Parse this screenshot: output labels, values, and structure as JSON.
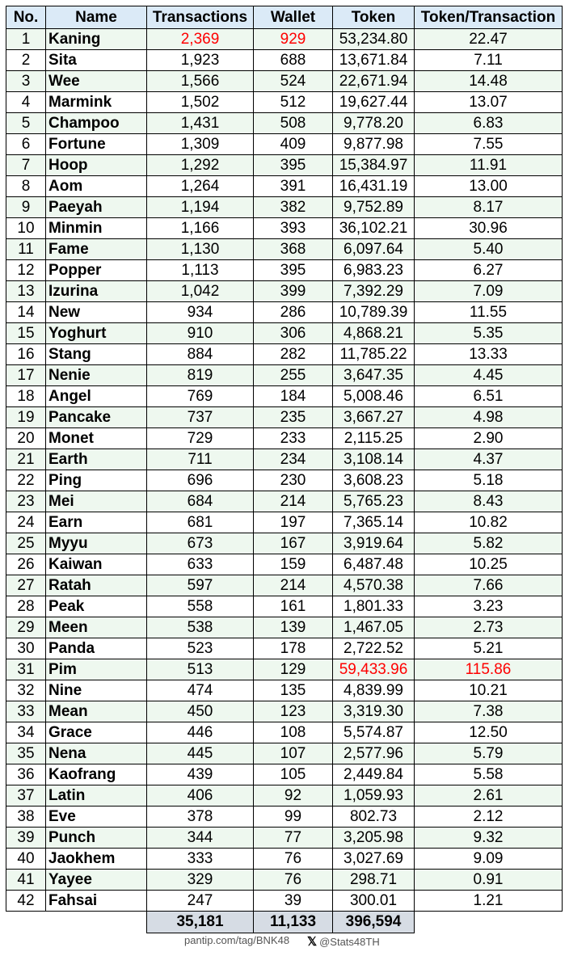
{
  "table": {
    "headers": [
      "No.",
      "Name",
      "Transactions",
      "Wallet",
      "Token",
      "Token/Transaction"
    ],
    "rows": [
      [
        "1",
        "Kaning",
        "2,369",
        "929",
        "53,234.80",
        "22.47"
      ],
      [
        "2",
        "Sita",
        "1,923",
        "688",
        "13,671.84",
        "7.11"
      ],
      [
        "3",
        "Wee",
        "1,566",
        "524",
        "22,671.94",
        "14.48"
      ],
      [
        "4",
        "Marmink",
        "1,502",
        "512",
        "19,627.44",
        "13.07"
      ],
      [
        "5",
        "Champoo",
        "1,431",
        "508",
        "9,778.20",
        "6.83"
      ],
      [
        "6",
        "Fortune",
        "1,309",
        "409",
        "9,877.98",
        "7.55"
      ],
      [
        "7",
        "Hoop",
        "1,292",
        "395",
        "15,384.97",
        "11.91"
      ],
      [
        "8",
        "Aom",
        "1,264",
        "391",
        "16,431.19",
        "13.00"
      ],
      [
        "9",
        "Paeyah",
        "1,194",
        "382",
        "9,752.89",
        "8.17"
      ],
      [
        "10",
        "Minmin",
        "1,166",
        "393",
        "36,102.21",
        "30.96"
      ],
      [
        "11",
        "Fame",
        "1,130",
        "368",
        "6,097.64",
        "5.40"
      ],
      [
        "12",
        "Popper",
        "1,113",
        "395",
        "6,983.23",
        "6.27"
      ],
      [
        "13",
        "Izurina",
        "1,042",
        "399",
        "7,392.29",
        "7.09"
      ],
      [
        "14",
        "New",
        "934",
        "286",
        "10,789.39",
        "11.55"
      ],
      [
        "15",
        "Yoghurt",
        "910",
        "306",
        "4,868.21",
        "5.35"
      ],
      [
        "16",
        "Stang",
        "884",
        "282",
        "11,785.22",
        "13.33"
      ],
      [
        "17",
        "Nenie",
        "819",
        "255",
        "3,647.35",
        "4.45"
      ],
      [
        "18",
        "Angel",
        "769",
        "184",
        "5,008.46",
        "6.51"
      ],
      [
        "19",
        "Pancake",
        "737",
        "235",
        "3,667.27",
        "4.98"
      ],
      [
        "20",
        "Monet",
        "729",
        "233",
        "2,115.25",
        "2.90"
      ],
      [
        "21",
        "Earth",
        "711",
        "234",
        "3,108.14",
        "4.37"
      ],
      [
        "22",
        "Ping",
        "696",
        "230",
        "3,608.23",
        "5.18"
      ],
      [
        "23",
        "Mei",
        "684",
        "214",
        "5,765.23",
        "8.43"
      ],
      [
        "24",
        "Earn",
        "681",
        "197",
        "7,365.14",
        "10.82"
      ],
      [
        "25",
        "Myyu",
        "673",
        "167",
        "3,919.64",
        "5.82"
      ],
      [
        "26",
        "Kaiwan",
        "633",
        "159",
        "6,487.48",
        "10.25"
      ],
      [
        "27",
        "Ratah",
        "597",
        "214",
        "4,570.38",
        "7.66"
      ],
      [
        "28",
        "Peak",
        "558",
        "161",
        "1,801.33",
        "3.23"
      ],
      [
        "29",
        "Meen",
        "538",
        "139",
        "1,467.05",
        "2.73"
      ],
      [
        "30",
        "Panda",
        "523",
        "178",
        "2,722.52",
        "5.21"
      ],
      [
        "31",
        "Pim",
        "513",
        "129",
        "59,433.96",
        "115.86"
      ],
      [
        "32",
        "Nine",
        "474",
        "135",
        "4,839.99",
        "10.21"
      ],
      [
        "33",
        "Mean",
        "450",
        "123",
        "3,319.30",
        "7.38"
      ],
      [
        "34",
        "Grace",
        "446",
        "108",
        "5,574.87",
        "12.50"
      ],
      [
        "35",
        "Nena",
        "445",
        "107",
        "2,577.96",
        "5.79"
      ],
      [
        "36",
        "Kaofrang",
        "439",
        "105",
        "2,449.84",
        "5.58"
      ],
      [
        "37",
        "Latin",
        "406",
        "92",
        "1,059.93",
        "2.61"
      ],
      [
        "38",
        "Eve",
        "378",
        "99",
        "802.73",
        "2.12"
      ],
      [
        "39",
        "Punch",
        "344",
        "77",
        "3,205.98",
        "9.32"
      ],
      [
        "40",
        "Jaokhem",
        "333",
        "76",
        "3,027.69",
        "9.09"
      ],
      [
        "41",
        "Yayee",
        "329",
        "76",
        "298.71",
        "0.91"
      ],
      [
        "42",
        "Fahsai",
        "247",
        "39",
        "300.01",
        "1.21"
      ]
    ],
    "highlight_color": "#ff0000",
    "highlights": [
      {
        "row": 0,
        "col": 2
      },
      {
        "row": 0,
        "col": 3
      },
      {
        "row": 30,
        "col": 4
      },
      {
        "row": 30,
        "col": 5
      }
    ],
    "totals": {
      "transactions": "35,181",
      "wallet": "11,133",
      "token": "396,594"
    }
  },
  "footer": {
    "source": "pantip.com/tag/BNK48",
    "x_icon": "x-logo-icon",
    "x_glyph": "𝕏",
    "handle": "@Stats48TH"
  }
}
